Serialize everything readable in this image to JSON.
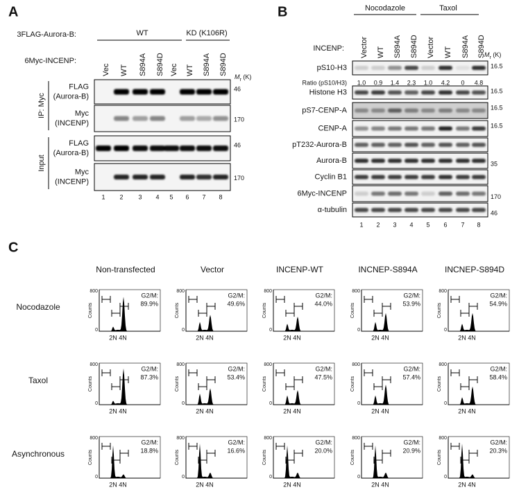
{
  "panel_a": {
    "label": "A",
    "aurora_label": "3FLAG-Aurora-B:",
    "groups": [
      "WT",
      "KD (K106R)"
    ],
    "incenp_label": "6Myc-INCENP:",
    "lanes": [
      "Vec",
      "WT",
      "S894A",
      "S894D",
      "Vec",
      "WT",
      "S894A",
      "S894D"
    ],
    "mr": "M",
    "mr_sub": "r",
    "mr_unit": " (K)",
    "sections": [
      {
        "name": "IP: Myc",
        "rows": [
          {
            "label": [
              "FLAG",
              "(Aurora-B)"
            ],
            "marker": "46"
          },
          {
            "label": [
              "Myc",
              "(INCENP)"
            ],
            "marker": "170"
          }
        ]
      },
      {
        "name": "Input",
        "rows": [
          {
            "label": [
              "FLAG",
              "(Aurora-B)"
            ],
            "marker": "46"
          },
          {
            "label": [
              "Myc",
              "(INCENP)"
            ],
            "marker": "170"
          }
        ]
      }
    ],
    "lane_numbers": [
      "1",
      "2",
      "3",
      "4",
      "5",
      "6",
      "7",
      "8"
    ]
  },
  "panel_b": {
    "label": "B",
    "groups": [
      "Nocodazole",
      "Taxol"
    ],
    "incenp_label": "INCENP:",
    "lanes": [
      "Vector",
      "WT",
      "S894A",
      "S894D",
      "Vector",
      "WT",
      "S894A",
      "S894D"
    ],
    "mr": "M",
    "mr_sub": "r",
    "mr_unit": " (K)",
    "ratio_label": "Ratio (pS10/H3)",
    "ratios": [
      "1.0",
      "0.9",
      "1.4",
      "2.3",
      "1.0",
      "4.2",
      "0",
      "4.8"
    ],
    "rows": [
      {
        "label": "pS10-H3",
        "marker": "16.5"
      },
      {
        "label": "Histone H3",
        "marker": "16.5"
      },
      {
        "label": "pS7-CENP-A",
        "marker": "16.5"
      },
      {
        "label": "CENP-A",
        "marker": "16.5"
      },
      {
        "label": "pT232-Aurora-B",
        "marker": null
      },
      {
        "label": "Aurora-B",
        "marker": "35"
      },
      {
        "label": "Cyclin B1",
        "marker": null
      },
      {
        "label": "6Myc-INCENP",
        "marker": "170"
      },
      {
        "label": "α-tubulin",
        "marker": "46"
      }
    ],
    "lane_numbers": [
      "1",
      "2",
      "3",
      "4",
      "5",
      "6",
      "7",
      "8"
    ]
  },
  "panel_c": {
    "label": "C",
    "columns": [
      "Non-transfected",
      "Vector",
      "INCENP-WT",
      "INCNEP-S894A",
      "INCNEP-S894D"
    ],
    "rows": [
      {
        "name": "Nocodazole",
        "g2m": [
          "89.9%",
          "49.6%",
          "44.0%",
          "53.9%",
          "54.9%"
        ]
      },
      {
        "name": "Taxol",
        "g2m": [
          "87.3%",
          "53.4%",
          "47.5%",
          "57.4%",
          "58.4%"
        ]
      },
      {
        "name": "Asynchronous",
        "g2m": [
          "18.8%",
          "16.6%",
          "20.0%",
          "20.9%",
          "20.3%"
        ]
      }
    ],
    "g2m_label": "G2/M:",
    "y_label": "Counts",
    "y_ticks": [
      "0",
      "800"
    ],
    "x_ticks": [
      "2N",
      "4N"
    ]
  }
}
